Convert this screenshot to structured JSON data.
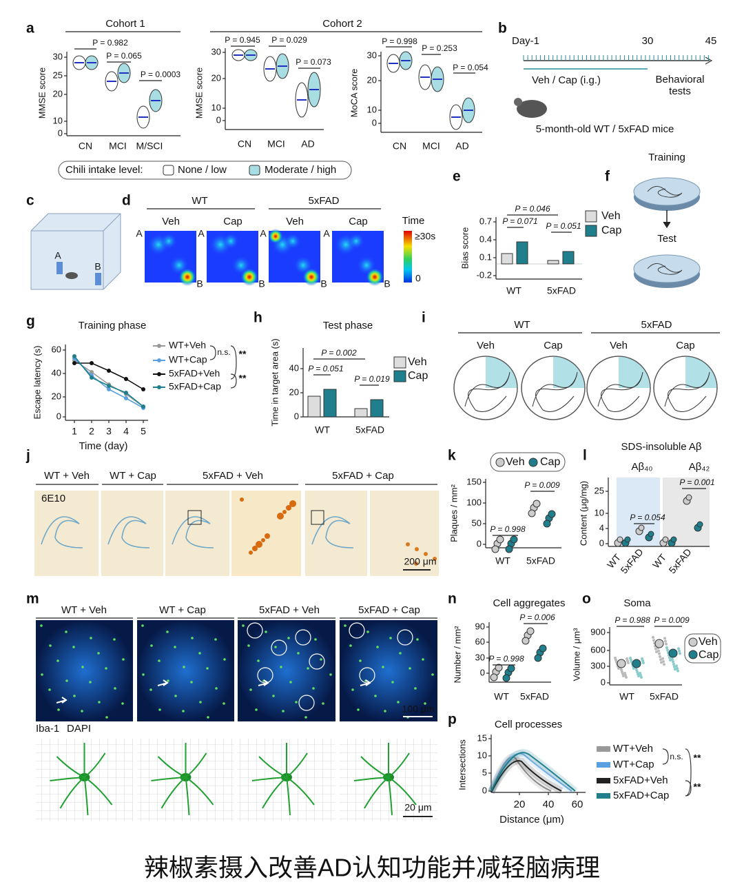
{
  "panel_a": {
    "label": "a",
    "cohort1": "Cohort 1",
    "cohort2": "Cohort 2",
    "mmse_label": "MMSE score",
    "mmse_label2": "MMSE score",
    "moca_label": "MoCA score",
    "p1": [
      "P = 0.982",
      "P = 0.065",
      "P = 0.0003"
    ],
    "p2": [
      "P = 0.945",
      "P = 0.029",
      "P = 0.073"
    ],
    "p3": [
      "P = 0.998",
      "P = 0.253",
      "P = 0.054"
    ],
    "yticks1": [
      "30",
      "25",
      "20",
      "10",
      "0"
    ],
    "yticks2": [
      "30",
      "20",
      "10",
      "0"
    ],
    "yticks3": [
      "30",
      "20",
      "10",
      "0"
    ],
    "groups1": [
      "CN",
      "MCI",
      "M/SCI"
    ],
    "groups2": [
      "CN",
      "MCI",
      "AD"
    ],
    "groups3": [
      "CN",
      "MCI",
      "AD"
    ],
    "legend_title": "Chili intake level:",
    "legend": [
      "None / low",
      "Moderate / high"
    ]
  },
  "panel_b": {
    "label": "b",
    "day_start": "Day-1",
    "day_mid": "30",
    "day_end": "45",
    "treatment": "Veh / Cap (i.g.)",
    "tests": [
      "Behavioral",
      "tests"
    ],
    "mice": "5-month-old WT / 5xFAD mice"
  },
  "panel_c": {
    "label": "c",
    "corners": [
      "A",
      "B"
    ]
  },
  "panel_d": {
    "label": "d",
    "groups": [
      "WT",
      "5xFAD"
    ],
    "conditions": [
      "Veh",
      "Cap",
      "Veh",
      "Cap"
    ],
    "corner_a": "A",
    "corner_b": "B",
    "scale_title": "Time",
    "scale_max": "≥30s",
    "scale_min": "0"
  },
  "panel_e": {
    "label": "e",
    "ylabel": "Bias score",
    "yticks": [
      "0.7",
      "0.4",
      "0.1",
      "-0.2"
    ],
    "p": [
      "P = 0.046",
      "P = 0.071",
      "P = 0.051"
    ],
    "groups": [
      "WT",
      "5xFAD"
    ],
    "legend": [
      "Veh",
      "Cap"
    ]
  },
  "panel_f": {
    "label": "f",
    "training": "Training",
    "test": "Test"
  },
  "panel_g": {
    "label": "g",
    "title": "Training phase",
    "ylabel": "Escape latency (s)",
    "xlabel": "Time (day)",
    "yticks": [
      "60",
      "40",
      "20",
      "0"
    ],
    "xticks": [
      "1",
      "2",
      "3",
      "4",
      "5"
    ],
    "legend": [
      "WT+Veh",
      "WT+Cap",
      "5xFAD+Veh",
      "5xFAD+Cap"
    ],
    "ns": "n.s.",
    "sig": [
      "**",
      "**"
    ]
  },
  "panel_h": {
    "label": "h",
    "title": "Test phase",
    "ylabel": "Time in target area (s)",
    "yticks": [
      "40",
      "20",
      "0"
    ],
    "p": [
      "P = 0.002",
      "P = 0.051",
      "P = 0.019"
    ],
    "groups": [
      "WT",
      "5xFAD"
    ],
    "legend": [
      "Veh",
      "Cap"
    ]
  },
  "panel_i": {
    "label": "i",
    "groups": [
      "WT",
      "5xFAD"
    ],
    "conditions": [
      "Veh",
      "Cap",
      "Veh",
      "Cap"
    ]
  },
  "panel_j": {
    "label": "j",
    "headers": [
      "WT + Veh",
      "WT + Cap",
      "5xFAD + Veh",
      "5xFAD + Cap"
    ],
    "stain": "6E10",
    "scale": "200 μm"
  },
  "panel_k": {
    "label": "k",
    "legend": [
      "Veh",
      "Cap"
    ],
    "ylabel": "Plaques / mm²",
    "yticks": [
      "150",
      "100",
      "50",
      "0"
    ],
    "p": [
      "P = 0.998",
      "P = 0.009"
    ],
    "groups": [
      "WT",
      "5xFAD"
    ]
  },
  "panel_l": {
    "label": "l",
    "title": "SDS-insoluble Aβ",
    "subtitles": [
      "Aβ₄₀",
      "Aβ₄₂"
    ],
    "ylabel": "Content (μg/mg)",
    "yticks": [
      "25",
      "10",
      "4",
      "0"
    ],
    "p": [
      "P = 0.054",
      "P = 0.001"
    ],
    "groups": [
      "WT",
      "5xFAD",
      "WT",
      "5xFAD"
    ]
  },
  "panel_m": {
    "label": "m",
    "headers": [
      "WT + Veh",
      "WT + Cap",
      "5xFAD + Veh",
      "5xFAD + Cap"
    ],
    "stain1": "Iba-1",
    "stain2": "DAPI",
    "scale1": "100 μm",
    "scale2": "20 μm"
  },
  "panel_n": {
    "label": "n",
    "title": "Cell aggregates",
    "ylabel": "Number / mm²",
    "yticks": [
      "90",
      "60",
      "30",
      "0"
    ],
    "p": [
      "P = 0.998",
      "P = 0.006"
    ],
    "groups": [
      "WT",
      "5xFAD"
    ]
  },
  "panel_o": {
    "label": "o",
    "title": "Soma",
    "ylabel": "Volume / μm³",
    "yticks": [
      "900",
      "600",
      "300",
      "0"
    ],
    "p": [
      "P = 0.988",
      "P = 0.009"
    ],
    "groups": [
      "WT",
      "5xFAD"
    ],
    "legend": [
      "Veh",
      "Cap"
    ]
  },
  "panel_p": {
    "label": "p",
    "title": "Cell processes",
    "ylabel": "Intersections",
    "xlabel": "Distance (μm)",
    "yticks": [
      "15",
      "10",
      "5",
      "0"
    ],
    "xticks": [
      "20",
      "40",
      "60"
    ],
    "legend": [
      "WT+Veh",
      "WT+Cap",
      "5xFAD+Veh",
      "5xFAD+Cap"
    ],
    "ns": "n.s.",
    "sig": [
      "**",
      "**"
    ]
  },
  "caption": "辣椒素摄入改善AD认知功能并减轻脑病理"
}
